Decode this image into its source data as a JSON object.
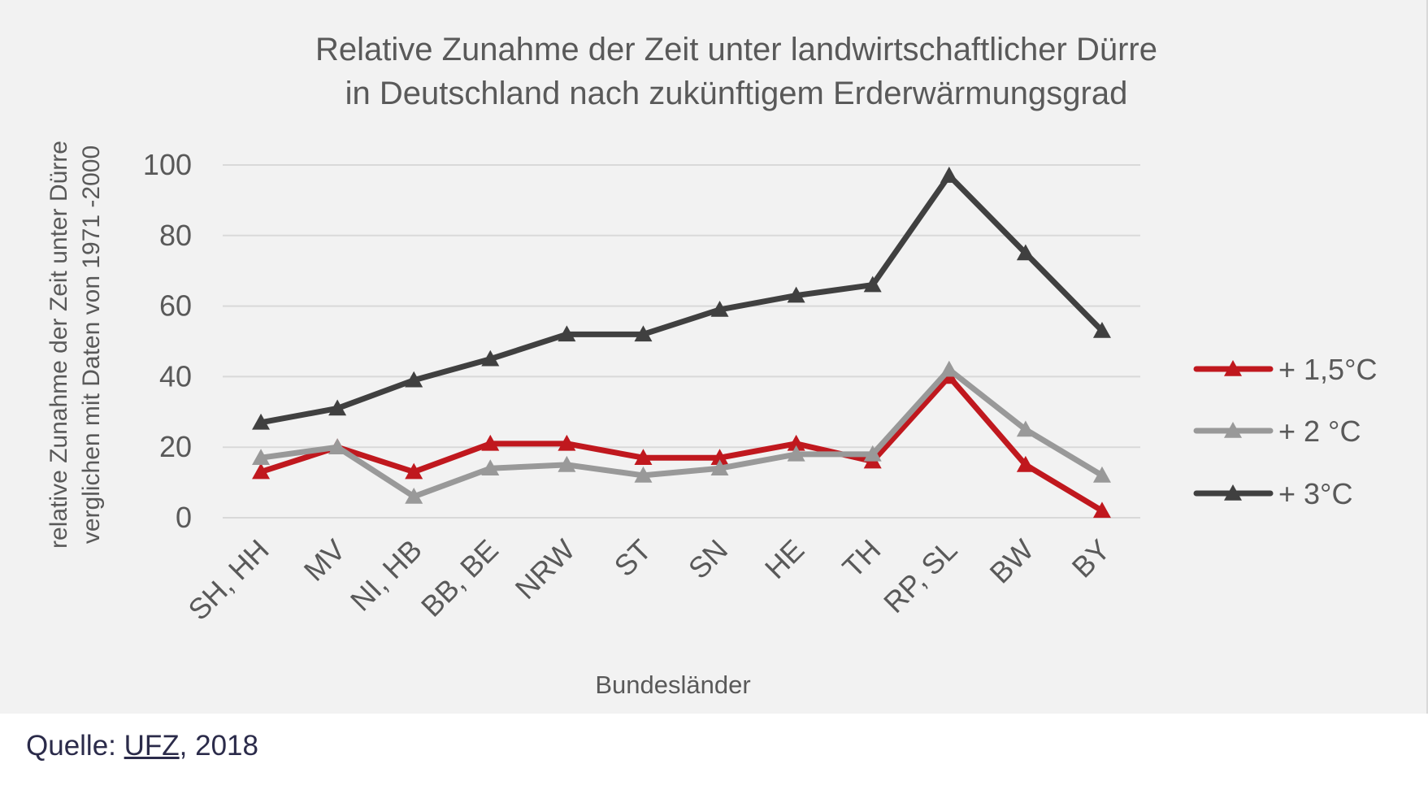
{
  "colors": {
    "background": "#f2f2f2",
    "grid": "#d9d9d9",
    "text": "#595959",
    "source_text": "#2b2b4a"
  },
  "chart_data": {
    "type": "line",
    "title_line1": "Relative Zunahme der Zeit unter landwirtschaftlicher Dürre",
    "title_line2": "in Deutschland nach zukünftigem Erderwärmungsgrad",
    "xlabel": "Bundesländer",
    "ylabel_line1": "relative Zunahme der Zeit unter Dürre",
    "ylabel_line2": "verglichen mit Daten von 1971 -2000",
    "ylim": [
      0,
      100
    ],
    "yticks": [
      "0",
      "20",
      "40",
      "60",
      "80",
      "100"
    ],
    "grid": true,
    "legend_position": "right",
    "marker": "triangle",
    "categories": [
      "SH, HH",
      "MV",
      "NI, HB",
      "BB, BE",
      "NRW",
      "ST",
      "SN",
      "HE",
      "TH",
      "RP, SL",
      "BW",
      "BY"
    ],
    "series": [
      {
        "name": "+ 1,5°C",
        "color": "#c0181e",
        "values": [
          13,
          20,
          13,
          21,
          21,
          17,
          17,
          21,
          16,
          40,
          15,
          2
        ]
      },
      {
        "name": "+ 2 °C",
        "color": "#999999",
        "values": [
          17,
          20,
          6,
          14,
          15,
          12,
          14,
          18,
          18,
          42,
          25,
          12
        ]
      },
      {
        "name": "+ 3°C",
        "color": "#404040",
        "values": [
          27,
          31,
          39,
          45,
          52,
          52,
          59,
          63,
          66,
          97,
          75,
          53
        ]
      }
    ]
  },
  "source": {
    "prefix": "Quelle: ",
    "link_text": "UFZ",
    "suffix": ", 2018"
  }
}
